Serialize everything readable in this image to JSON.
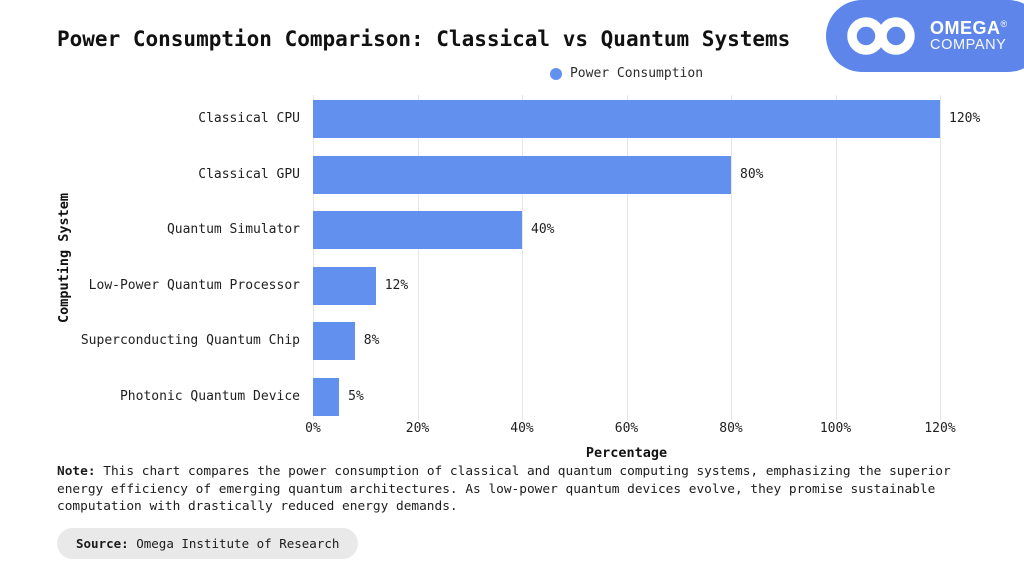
{
  "header": {
    "title": "Power Consumption Comparison: Classical vs Quantum Systems"
  },
  "logo": {
    "brand": "OMEGA",
    "registered": "®",
    "subtitle": "COMPANY",
    "icon": "infinity-icon"
  },
  "legend": {
    "label": "Power Consumption"
  },
  "chart_data": {
    "type": "bar",
    "orientation": "horizontal",
    "title": "Power Consumption Comparison: Classical vs Quantum Systems",
    "series_name": "Power Consumption",
    "categories": [
      "Classical CPU",
      "Classical GPU",
      "Quantum Simulator",
      "Low-Power Quantum Processor",
      "Superconducting Quantum Chip",
      "Photonic Quantum Device"
    ],
    "values": [
      120,
      80,
      40,
      12,
      8,
      5
    ],
    "value_labels": [
      "120%",
      "80%",
      "40%",
      "12%",
      "8%",
      "5%"
    ],
    "xlabel": "Percentage",
    "ylabel": "Computing System",
    "xlim": [
      0,
      120
    ],
    "x_ticks": [
      "0%",
      "20%",
      "40%",
      "60%",
      "80%",
      "100%",
      "120%"
    ],
    "grid": true,
    "legend_position": "top-center",
    "bar_color": "#6290ef"
  },
  "note": {
    "label": "Note:",
    "text": " This chart compares the power consumption of classical and quantum computing systems, emphasizing the superior energy efficiency of emerging quantum architectures. As low-power quantum devices evolve, they promise sustainable computation with drastically reduced energy demands."
  },
  "source": {
    "label": "Source:",
    "text": " Omega Institute of Research"
  },
  "colors": {
    "bar": "#6290ef",
    "logo_bg": "#5e86ea",
    "grid": "#e7e7e7",
    "source_bg": "#e9e9e9"
  }
}
